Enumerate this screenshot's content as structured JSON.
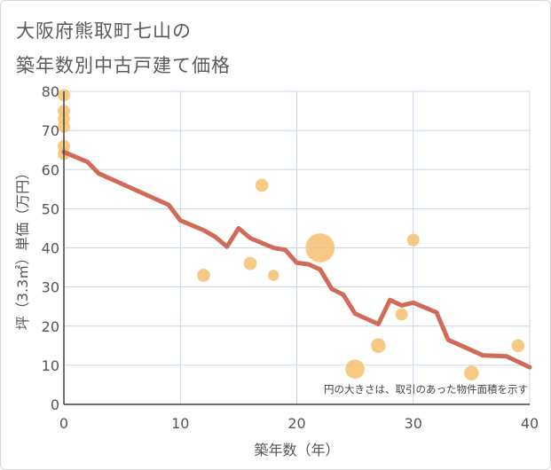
{
  "title_line1": "大阪府熊取町七山の",
  "title_line2": "築年数別中古戸建て価格",
  "chart_data": {
    "type": "scatter",
    "xlabel": "築年数（年）",
    "ylabel": "坪（3.3㎡）単価（万円）",
    "xlim": [
      0,
      40
    ],
    "ylim": [
      0,
      80
    ],
    "xticks": [
      "0",
      "10",
      "20",
      "30",
      "40"
    ],
    "yticks": [
      "0",
      "10",
      "20",
      "30",
      "40",
      "50",
      "60",
      "70",
      "80"
    ],
    "grid": true,
    "annotation": "円の大きさは、取引のあった物件面積を示す",
    "colors": {
      "bubble": "#f5c170",
      "line": "#d06b5a",
      "grid": "#c8d6e6",
      "axis": "#444444"
    },
    "bubbles": [
      {
        "x": 0,
        "y": 79,
        "size": 1
      },
      {
        "x": 0,
        "y": 75,
        "size": 1
      },
      {
        "x": 0,
        "y": 73,
        "size": 1
      },
      {
        "x": 0,
        "y": 71,
        "size": 1
      },
      {
        "x": 0,
        "y": 66,
        "size": 1
      },
      {
        "x": 0,
        "y": 64,
        "size": 1
      },
      {
        "x": 12,
        "y": 33,
        "size": 1.1
      },
      {
        "x": 16,
        "y": 36,
        "size": 1.1
      },
      {
        "x": 17,
        "y": 56,
        "size": 1.1
      },
      {
        "x": 18,
        "y": 33,
        "size": 0.8
      },
      {
        "x": 22,
        "y": 40,
        "size": 5.5
      },
      {
        "x": 25,
        "y": 9,
        "size": 2.4
      },
      {
        "x": 27,
        "y": 15,
        "size": 1.4
      },
      {
        "x": 29,
        "y": 23,
        "size": 1
      },
      {
        "x": 30,
        "y": 42,
        "size": 1
      },
      {
        "x": 35,
        "y": 8,
        "size": 1.4
      },
      {
        "x": 39,
        "y": 15,
        "size": 1.1
      }
    ],
    "line": {
      "x": [
        0,
        2,
        3,
        9,
        10,
        12,
        13,
        14,
        15,
        16,
        18,
        19,
        20,
        21,
        22,
        23,
        24,
        25,
        27,
        28,
        29,
        30,
        32,
        33,
        36,
        38,
        40
      ],
      "y": [
        64.5,
        62,
        59,
        51,
        47,
        44.5,
        42.8,
        40.3,
        45,
        42.5,
        40,
        39.5,
        36.2,
        35.8,
        34.5,
        29.5,
        28,
        23.2,
        20.5,
        26.7,
        25.3,
        26,
        23.5,
        16.5,
        12.5,
        12.3,
        9.5
      ]
    }
  }
}
